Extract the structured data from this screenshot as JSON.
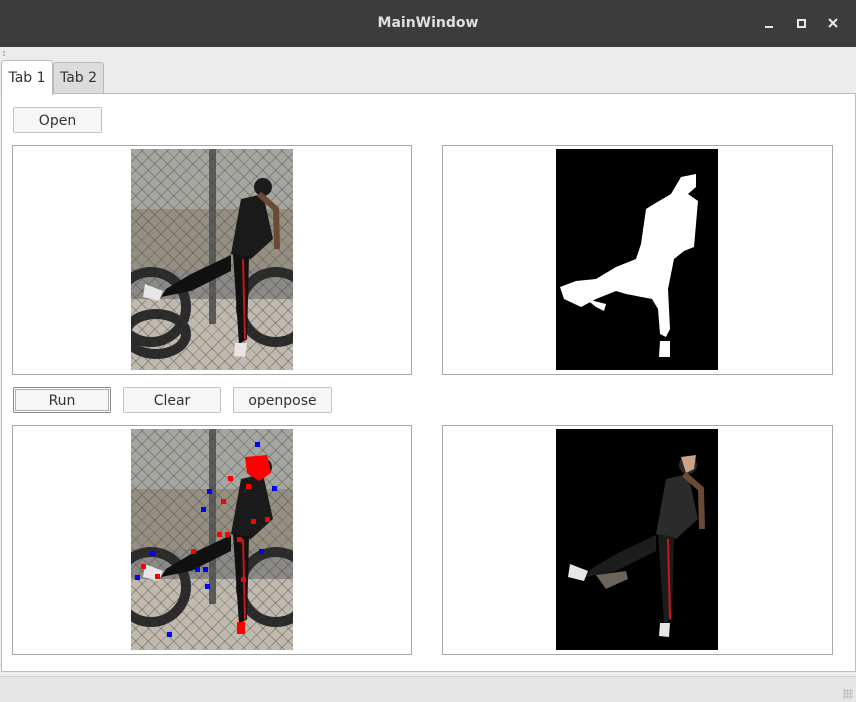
{
  "window": {
    "title": "MainWindow"
  },
  "tabs": [
    {
      "label": "Tab 1",
      "active": true
    },
    {
      "label": "Tab 2",
      "active": false
    }
  ],
  "buttons": {
    "open": "Open",
    "run": "Run",
    "clear": "Clear",
    "openpose": "openpose"
  },
  "panels": {
    "original": {
      "icon": "photo-of-person"
    },
    "mask": {
      "icon": "binary-mask"
    },
    "pose": {
      "icon": "photo-with-pose-keypoints"
    },
    "cutout": {
      "icon": "segmented-cutout"
    }
  },
  "colors": {
    "keypoint_red": "#ff0000",
    "keypoint_blue": "#0000ff",
    "mask_bg": "#000000",
    "mask_fg": "#ffffff"
  }
}
